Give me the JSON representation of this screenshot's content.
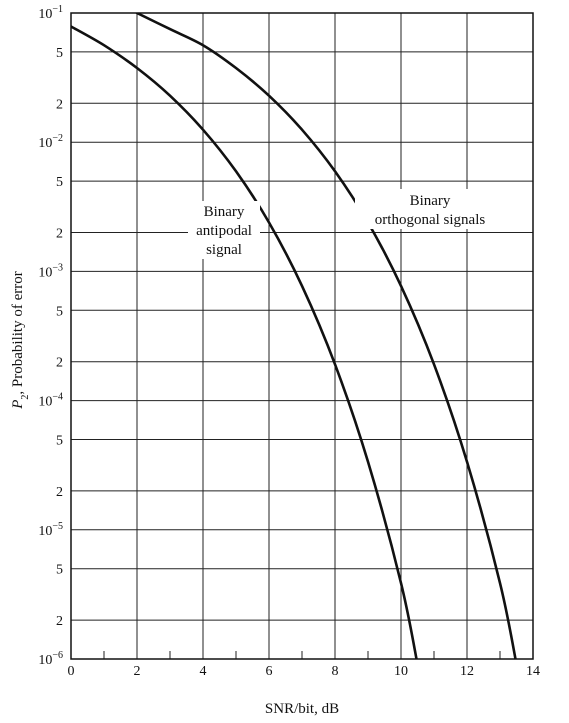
{
  "chart_data": {
    "type": "line",
    "title": "",
    "xlabel": "SNR/bit, dB",
    "ylabel_main": "P",
    "ylabel_sub": "2",
    "ylabel_rest": ", Probability of error",
    "xlim": [
      0,
      14
    ],
    "ylim": [
      1e-06,
      0.1
    ],
    "yscale": "log",
    "grid": true,
    "x_ticks": [
      0,
      2,
      4,
      6,
      8,
      10,
      12,
      14
    ],
    "x_minor_ticks": [
      1,
      3,
      5,
      7,
      9,
      11,
      13
    ],
    "y_ticks": [
      {
        "value": 0.1,
        "base": "10",
        "exp": "−1"
      },
      {
        "value": 0.05,
        "label": "5"
      },
      {
        "value": 0.02,
        "label": "2"
      },
      {
        "value": 0.01,
        "base": "10",
        "exp": "−2"
      },
      {
        "value": 0.005,
        "label": "5"
      },
      {
        "value": 0.002,
        "label": "2"
      },
      {
        "value": 0.001,
        "base": "10",
        "exp": "−3"
      },
      {
        "value": 0.0005,
        "label": "5"
      },
      {
        "value": 0.0002,
        "label": "2"
      },
      {
        "value": 0.0001,
        "base": "10",
        "exp": "−4"
      },
      {
        "value": 5e-05,
        "label": "5"
      },
      {
        "value": 2e-05,
        "label": "2"
      },
      {
        "value": 1e-05,
        "base": "10",
        "exp": "−5"
      },
      {
        "value": 5e-06,
        "label": "5"
      },
      {
        "value": 2e-06,
        "label": "2"
      },
      {
        "value": 1e-06,
        "base": "10",
        "exp": "−6"
      }
    ],
    "series": [
      {
        "key": "antipodal",
        "x": [
          0,
          1,
          2,
          3,
          4,
          5,
          6,
          7,
          8,
          9,
          10,
          10.5
        ],
        "y": [
          0.0786,
          0.0563,
          0.0375,
          0.0229,
          0.0125,
          0.00595,
          0.00239,
          0.000772,
          0.000191,
          3.36e-05,
          3.87e-06,
          9.1e-07
        ]
      },
      {
        "key": "orthogonal",
        "x": [
          2,
          3,
          4,
          5,
          6,
          7,
          8,
          9,
          10,
          11,
          12,
          13,
          13.5
        ],
        "y": [
          0.1,
          0.075,
          0.0563,
          0.0375,
          0.0229,
          0.0125,
          0.00595,
          0.00239,
          0.000772,
          0.000191,
          3.36e-05,
          3.87e-06,
          9.1e-07
        ]
      }
    ],
    "annotations": [
      {
        "series": "antipodal",
        "lines": [
          "Binary",
          "antipodal",
          "signal"
        ]
      },
      {
        "series": "orthogonal",
        "lines": [
          "Binary",
          "orthogonal signals"
        ]
      }
    ]
  }
}
